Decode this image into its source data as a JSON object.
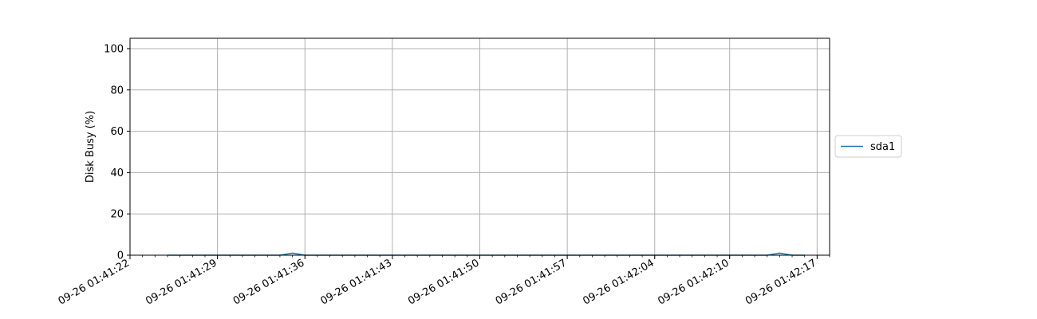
{
  "chart_data": {
    "type": "line",
    "title": "",
    "xlabel": "",
    "ylabel": "Disk Busy (%)",
    "ylim": [
      0,
      105
    ],
    "yticks": [
      0,
      20,
      40,
      60,
      80,
      100
    ],
    "xlim": [
      "09-26 01:41:22",
      "09-26 01:42:18"
    ],
    "xticks": [
      "09-26 01:41:22",
      "09-26 01:41:29",
      "09-26 01:41:36",
      "09-26 01:41:43",
      "09-26 01:41:50",
      "09-26 01:41:57",
      "09-26 01:42:04",
      "09-26 01:42:10",
      "09-26 01:42:17"
    ],
    "grid": true,
    "legend_position": "right",
    "series": [
      {
        "name": "sda1",
        "color": "#1f77b4",
        "x": [
          "09-26 01:41:25",
          "09-26 01:41:26",
          "09-26 01:41:27",
          "09-26 01:41:28",
          "09-26 01:41:29",
          "09-26 01:41:30",
          "09-26 01:41:31",
          "09-26 01:41:32",
          "09-26 01:41:33",
          "09-26 01:41:34",
          "09-26 01:41:35",
          "09-26 01:41:36",
          "09-26 01:41:37",
          "09-26 01:41:38",
          "09-26 01:41:39",
          "09-26 01:41:40",
          "09-26 01:41:41",
          "09-26 01:41:42",
          "09-26 01:41:43",
          "09-26 01:41:44",
          "09-26 01:41:45",
          "09-26 01:41:46",
          "09-26 01:41:47",
          "09-26 01:41:48",
          "09-26 01:41:49",
          "09-26 01:41:50",
          "09-26 01:41:51",
          "09-26 01:41:52",
          "09-26 01:41:53",
          "09-26 01:41:54",
          "09-26 01:41:55",
          "09-26 01:41:56",
          "09-26 01:41:57",
          "09-26 01:41:58",
          "09-26 01:41:59",
          "09-26 01:42:00",
          "09-26 01:42:01",
          "09-26 01:42:02",
          "09-26 01:42:03",
          "09-26 01:42:04",
          "09-26 01:42:05",
          "09-26 01:42:06",
          "09-26 01:42:07",
          "09-26 01:42:08",
          "09-26 01:42:09",
          "09-26 01:42:10",
          "09-26 01:42:11",
          "09-26 01:42:12",
          "09-26 01:42:13",
          "09-26 01:42:14",
          "09-26 01:42:15",
          "09-26 01:42:16"
        ],
        "values": [
          0,
          0,
          0,
          0,
          0,
          0,
          0,
          0,
          0,
          0,
          1,
          0,
          0,
          0,
          0,
          0,
          0,
          0,
          0,
          0,
          0,
          0,
          0,
          0,
          0,
          0,
          0,
          0,
          0,
          0,
          0,
          0,
          0,
          0,
          0,
          0,
          0,
          0,
          0,
          0,
          0,
          0,
          0,
          0,
          0,
          0,
          0,
          0,
          0,
          1,
          0,
          0
        ]
      }
    ]
  }
}
